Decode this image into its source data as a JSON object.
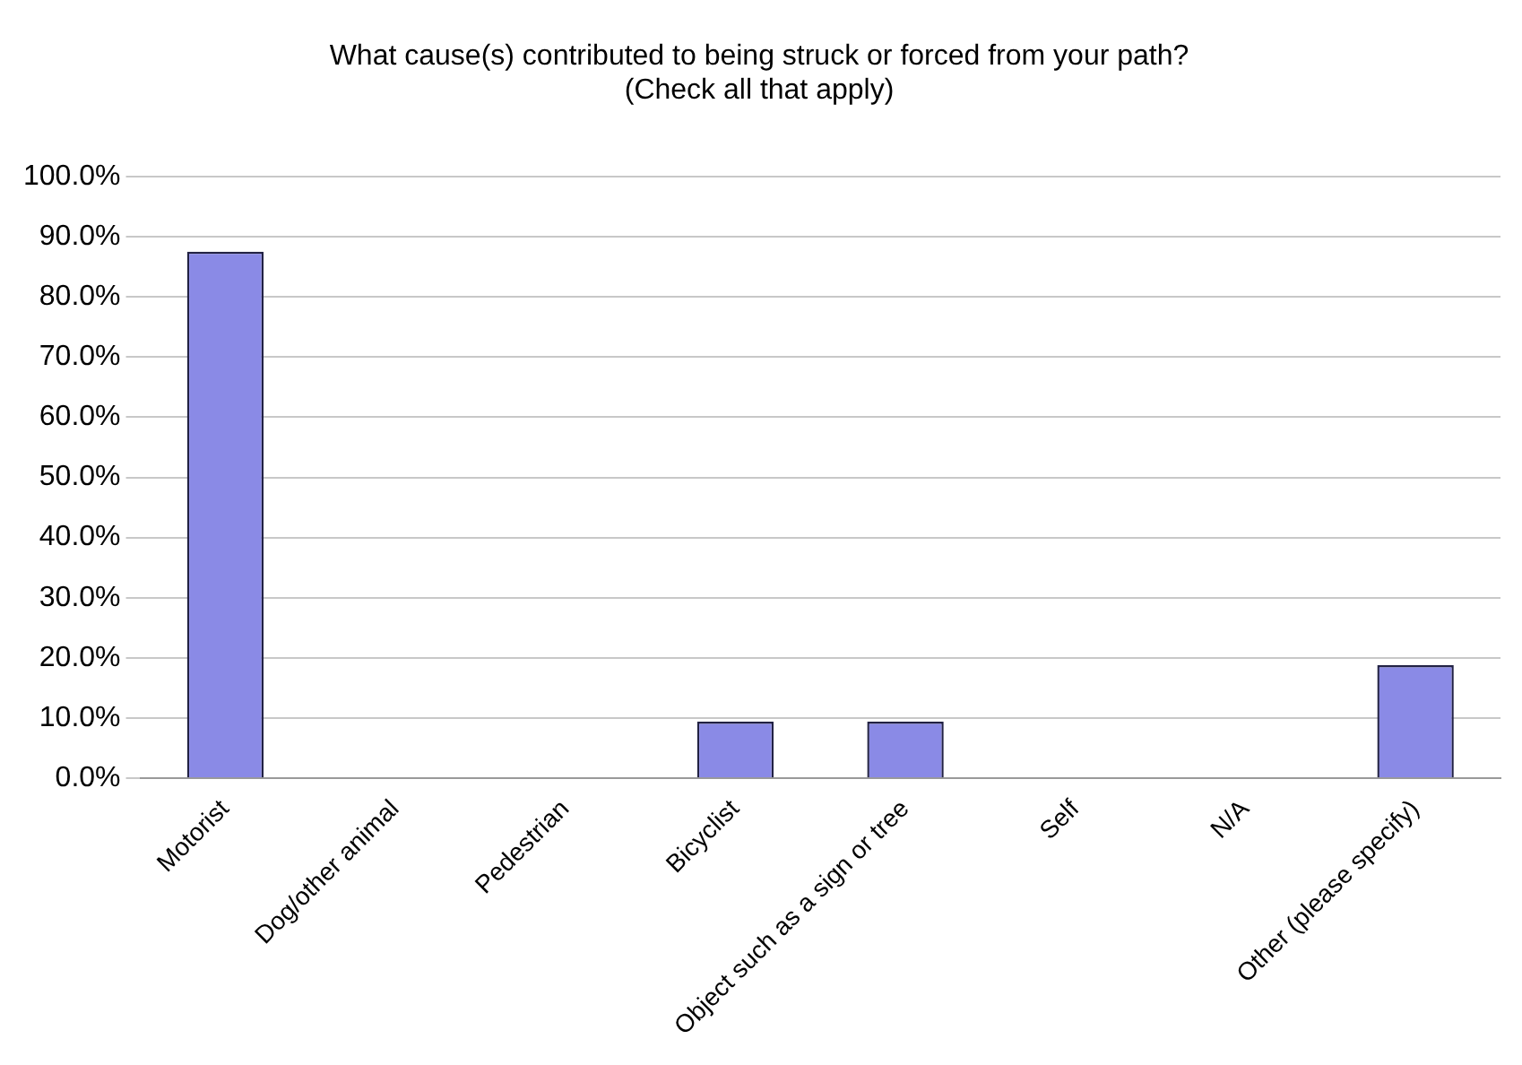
{
  "chart_data": {
    "type": "bar",
    "title": "What cause(s) contributed to being struck or forced from your path?\n(Check all that apply)",
    "categories": [
      "Motorist",
      "Dog/other animal",
      "Pedestrian",
      "Bicyclist",
      "Object such as a sign or tree",
      "Self",
      "N/A",
      "Other (please specify)"
    ],
    "values": [
      87.5,
      0,
      0,
      9.4,
      9.4,
      0,
      0,
      18.8
    ],
    "color": "#8a8ae6",
    "ylim": [
      0,
      100
    ],
    "yticks": [
      {
        "value": 0,
        "label": "0.0%"
      },
      {
        "value": 10,
        "label": "10.0%"
      },
      {
        "value": 20,
        "label": "20.0%"
      },
      {
        "value": 30,
        "label": "30.0%"
      },
      {
        "value": 40,
        "label": "40.0%"
      },
      {
        "value": 50,
        "label": "50.0%"
      },
      {
        "value": 60,
        "label": "60.0%"
      },
      {
        "value": 70,
        "label": "70.0%"
      },
      {
        "value": 80,
        "label": "80.0%"
      },
      {
        "value": 90,
        "label": "90.0%"
      },
      {
        "value": 100,
        "label": "100.0%"
      }
    ],
    "grid": "y",
    "legend": false
  }
}
